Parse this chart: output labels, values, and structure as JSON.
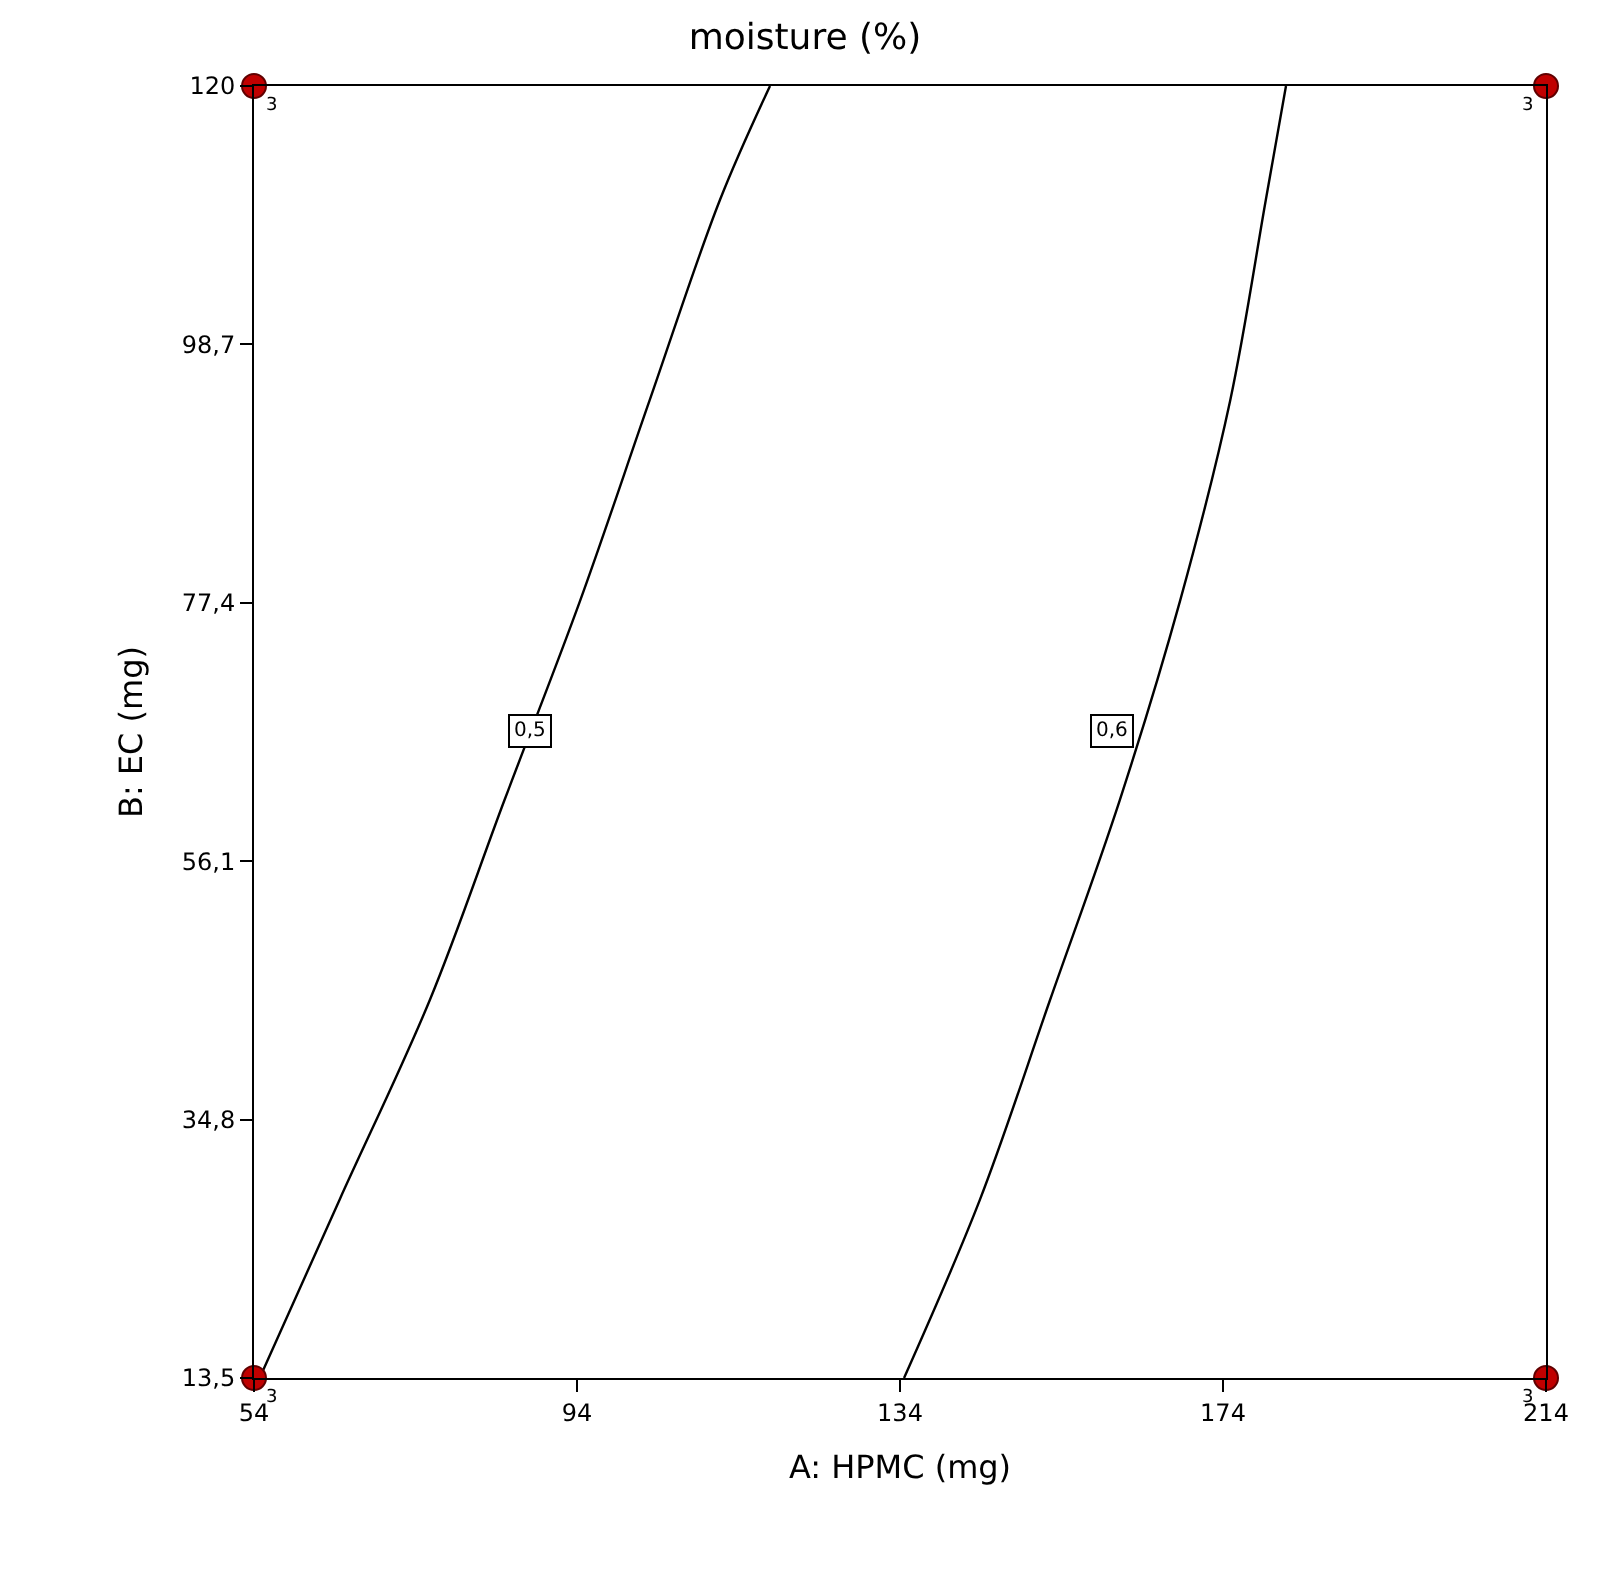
{
  "chart_data": {
    "type": "line",
    "title": "moisture (%)",
    "xlabel": "A: HPMC (mg)",
    "ylabel": "B: EC (mg)",
    "xlim": [
      54,
      214
    ],
    "xticks": [
      54,
      94,
      134,
      174,
      214
    ],
    "ylim": [
      13.5,
      120
    ],
    "yticks": [
      {
        "value": 13.5,
        "label": "13,5"
      },
      {
        "value": 34.8,
        "label": "34,8"
      },
      {
        "value": 56.1,
        "label": "56,1"
      },
      {
        "value": 77.4,
        "label": "77,4"
      },
      {
        "value": 98.7,
        "label": "98,7"
      },
      120
    ],
    "series": [
      {
        "color": "#000000",
        "x": [
          54.7,
          64.6,
          75.8,
          85.0,
          94.4,
          103.0,
          111.7,
          117.9
        ],
        "values": [
          13.5,
          28.2,
          44.7,
          61.1,
          77.6,
          94.1,
          110.6,
          120
        ]
      },
      {
        "color": "#000000",
        "x": [
          134.5,
          143.9,
          152.6,
          161.2,
          168.7,
          174.9,
          179.3,
          181.8
        ],
        "values": [
          13.5,
          28.2,
          44.7,
          61.1,
          77.6,
          94.1,
          110.6,
          120
        ]
      },
      {
        "type": "scatter",
        "color": "#c00000",
        "x": [
          54,
          54,
          214,
          214
        ],
        "values": [
          13.5,
          120,
          120,
          13.5
        ]
      }
    ],
    "annotations": [
      {
        "text": "0,5",
        "x": 88.2,
        "y": 66.8
      },
      {
        "text": "0,6",
        "x": 160.3,
        "y": 66.8
      },
      {
        "text": "3",
        "x": 54,
        "y": 13.5
      },
      {
        "text": "3",
        "x": 54,
        "y": 120
      },
      {
        "text": "3",
        "x": 214,
        "y": 120
      },
      {
        "text": "3",
        "x": 214,
        "y": 13.5
      }
    ]
  }
}
